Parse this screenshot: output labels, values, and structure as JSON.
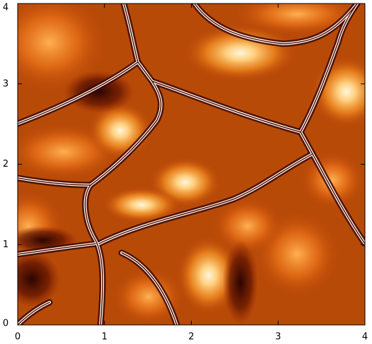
{
  "chart_data": {
    "type": "heatmap",
    "xlim": [
      0,
      4
    ],
    "ylim": [
      0,
      4
    ],
    "xticks": [
      0,
      1,
      2,
      3,
      4
    ],
    "yticks": [
      0,
      1,
      2,
      3,
      4
    ]
  }
}
